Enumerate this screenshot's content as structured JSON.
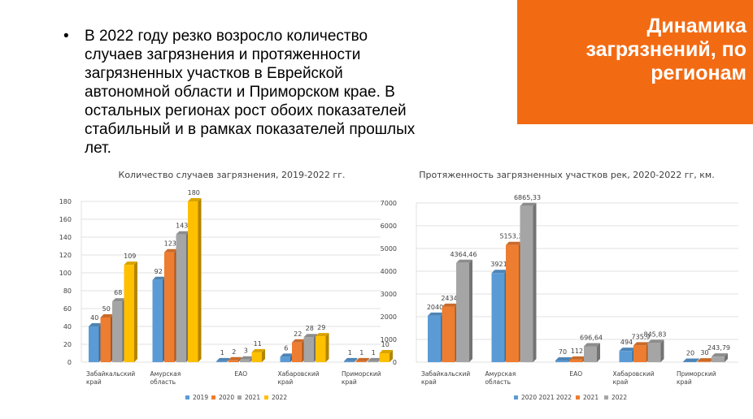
{
  "slide": {
    "title": "Динамика загрязнений, по регионам",
    "bullet": "В 2022 году резко возросло количество случаев загрязнения и протяженности загрязненных участков в Еврейской автономной области и Приморском крае. В остальных регионах рост обоих показателей стабильный и в рамках показателей прошлых лет.",
    "accent_color": "#f26b13"
  },
  "chart_data": [
    {
      "type": "bar",
      "title": "Количество случаев загрязнения, 2019-2022 гг.",
      "categories": [
        "Забайкальский край",
        "Амурская область",
        "ЕАО",
        "Хабаровский край",
        "Приморский край"
      ],
      "ylim": [
        0,
        180
      ],
      "yticks": [
        "0",
        "20",
        "40",
        "60",
        "80",
        "100",
        "120",
        "140",
        "160",
        "180"
      ],
      "grid": true,
      "legend_position": "bottom",
      "series": [
        {
          "name": "2019",
          "color": "#5b9bd5",
          "values": [
            40,
            92,
            1,
            6,
            1
          ],
          "labels": [
            "40",
            "92",
            "1",
            "6",
            "1"
          ]
        },
        {
          "name": "2020",
          "color": "#ed7d31",
          "values": [
            50,
            123,
            2,
            22,
            1
          ],
          "labels": [
            "50",
            "123",
            "2",
            "22",
            "1"
          ]
        },
        {
          "name": "2021",
          "color": "#a5a5a5",
          "values": [
            68,
            143,
            3,
            28,
            1
          ],
          "labels": [
            "68",
            "143",
            "3",
            "28",
            "1"
          ]
        },
        {
          "name": "2022",
          "color": "#ffc000",
          "values": [
            109,
            180,
            11,
            29,
            10
          ],
          "labels": [
            "109",
            "180",
            "11",
            "29",
            "10"
          ]
        }
      ]
    },
    {
      "type": "bar",
      "title": "Протяженность загрязненных участков рек, 2020-2022 гг, км.",
      "categories": [
        "Забайкальский край",
        "Амурская область",
        "ЕАО",
        "Хабаровский край",
        "Приморский край"
      ],
      "ylim": [
        0,
        7000
      ],
      "yticks": [
        "0",
        "1000",
        "2000",
        "3000",
        "4000",
        "5000",
        "6000",
        "7000"
      ],
      "grid": true,
      "legend_position": "bottom",
      "series": [
        {
          "name": "2020 2021 2022",
          "color": "#5b9bd5",
          "values": [
            2040,
            3921,
            70,
            494,
            20
          ],
          "labels": [
            "2040",
            "3921",
            "70",
            "494",
            "20"
          ]
        },
        {
          "name": "2021",
          "color": "#ed7d31",
          "values": [
            2434,
            5153.35,
            112,
            735.9,
            30
          ],
          "labels": [
            "2434",
            "5153,35",
            "112",
            "735,9",
            "30"
          ]
        },
        {
          "name": "2022",
          "color": "#a5a5a5",
          "values": [
            4364.46,
            6865.33,
            696.64,
            845.83,
            243.79
          ],
          "labels": [
            "4364,46",
            "6865,33",
            "696,64",
            "845,83",
            "243,79"
          ]
        }
      ]
    }
  ]
}
